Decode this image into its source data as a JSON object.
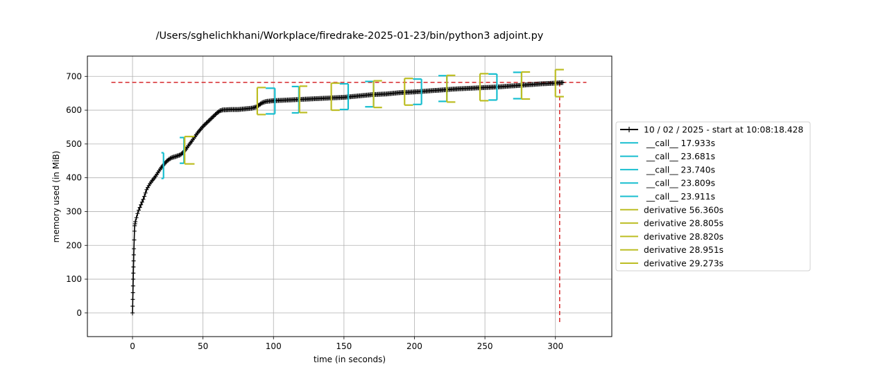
{
  "chart_data": {
    "type": "line",
    "title": "/Users/sghelichkhani/Workplace/firedrake-2025-01-23/bin/python3 adjoint.py",
    "xlabel": "time (in seconds)",
    "ylabel": "memory used (in MiB)",
    "xlim": [
      -32,
      340
    ],
    "ylim": [
      -70,
      760
    ],
    "xticks": [
      0,
      50,
      100,
      150,
      200,
      250,
      300
    ],
    "yticks": [
      0,
      100,
      200,
      300,
      400,
      500,
      600,
      700
    ],
    "grid": true,
    "legend_position": "outside-right",
    "colors": {
      "memory": "#000000",
      "call": "#17becf",
      "derivative": "#bcbd22",
      "peak": "#d62728"
    },
    "memory_series": {
      "name": "10 / 02 / 2025 - start at 10:08:18.428",
      "x": [
        0,
        0.5,
        1,
        1.5,
        2,
        3,
        4,
        5,
        6,
        8,
        10,
        12,
        14,
        16,
        18,
        20,
        22,
        24,
        26,
        28,
        30,
        32,
        34,
        36,
        38,
        40,
        42,
        44,
        46,
        48,
        50,
        52,
        54,
        56,
        58,
        60,
        62,
        64,
        66,
        70,
        75,
        80,
        85,
        88,
        90,
        92,
        95,
        100,
        110,
        120,
        130,
        140,
        150,
        160,
        170,
        180,
        190,
        200,
        210,
        220,
        230,
        240,
        250,
        260,
        270,
        280,
        290,
        300,
        306
      ],
      "y": [
        0,
        100,
        190,
        255,
        270,
        285,
        300,
        310,
        320,
        340,
        365,
        380,
        392,
        402,
        415,
        428,
        438,
        448,
        455,
        460,
        462,
        465,
        468,
        475,
        485,
        497,
        508,
        520,
        532,
        542,
        552,
        560,
        568,
        576,
        584,
        592,
        598,
        601,
        601,
        602,
        602,
        604,
        606,
        610,
        616,
        622,
        626,
        628,
        630,
        632,
        634,
        636,
        638,
        642,
        646,
        648,
        652,
        654,
        657,
        660,
        663,
        665,
        667,
        669,
        672,
        675,
        678,
        680,
        682
      ]
    },
    "peak": {
      "value": 682,
      "time": 303
    },
    "function_brackets": [
      {
        "name": "__call__ 17.933s",
        "kind": "call",
        "start": 20.5,
        "end": 22.0,
        "mem_low": 398,
        "mem_high": 474
      },
      {
        "name": "__call__ 23.681s",
        "kind": "call",
        "start": 33.5,
        "end": 36.5,
        "mem_low": 443,
        "mem_high": 519
      },
      {
        "name": "derivative 56.360s",
        "kind": "derivative",
        "start": 37.0,
        "end": 44.0,
        "mem_low": 441,
        "mem_high": 522
      },
      {
        "name": "__call__ 23.740s",
        "kind": "call",
        "start": 94.5,
        "end": 101.0,
        "mem_low": 589,
        "mem_high": 665
      },
      {
        "name": "derivative 28.805s",
        "kind": "derivative",
        "start": 88.5,
        "end": 94.5,
        "mem_low": 587,
        "mem_high": 667
      },
      {
        "name": "__call__ 23.809s",
        "kind": "call",
        "start": 113.0,
        "end": 118.0,
        "mem_low": 592,
        "mem_high": 670
      },
      {
        "name": "derivative 28.820s",
        "kind": "derivative",
        "start": 118.5,
        "end": 124.0,
        "mem_low": 593,
        "mem_high": 671
      },
      {
        "name": "__call__ 23.911s",
        "kind": "call",
        "start": 147.0,
        "end": 153.0,
        "mem_low": 602,
        "mem_high": 678
      },
      {
        "name": "derivative 28.951s",
        "kind": "derivative",
        "start": 141.0,
        "end": 147.0,
        "mem_low": 600,
        "mem_high": 680
      },
      {
        "name": "__call__",
        "kind": "call",
        "start": 165.0,
        "end": 171.0,
        "mem_low": 610,
        "mem_high": 685
      },
      {
        "name": "derivative",
        "kind": "derivative",
        "start": 171.0,
        "end": 177.0,
        "mem_low": 608,
        "mem_high": 687
      },
      {
        "name": "__call__",
        "kind": "call",
        "start": 199.0,
        "end": 205.0,
        "mem_low": 617,
        "mem_high": 692
      },
      {
        "name": "derivative",
        "kind": "derivative",
        "start": 193.0,
        "end": 199.0,
        "mem_low": 615,
        "mem_high": 694
      },
      {
        "name": "__call__",
        "kind": "call",
        "start": 217.0,
        "end": 223.0,
        "mem_low": 626,
        "mem_high": 702
      },
      {
        "name": "derivative",
        "kind": "derivative",
        "start": 223.0,
        "end": 229.0,
        "mem_low": 624,
        "mem_high": 703
      },
      {
        "name": "__call__",
        "kind": "call",
        "start": 252.5,
        "end": 258.5,
        "mem_low": 630,
        "mem_high": 707
      },
      {
        "name": "derivative",
        "kind": "derivative",
        "start": 246.5,
        "end": 252.5,
        "mem_low": 628,
        "mem_high": 708
      },
      {
        "name": "__call__",
        "kind": "call",
        "start": 270.0,
        "end": 276.0,
        "mem_low": 634,
        "mem_high": 712
      },
      {
        "name": "derivative",
        "kind": "derivative",
        "start": 276.0,
        "end": 282.0,
        "mem_low": 633,
        "mem_high": 713
      },
      {
        "name": "derivative 29.273s",
        "kind": "derivative",
        "start": 300.0,
        "end": 306.0,
        "mem_low": 640,
        "mem_high": 720
      }
    ],
    "legend": [
      {
        "label": "10 / 02 / 2025 - start at 10:08:18.428",
        "kind": "memory"
      },
      {
        "label": " __call__ 17.933s",
        "kind": "call"
      },
      {
        "label": " __call__ 23.681s",
        "kind": "call"
      },
      {
        "label": " __call__ 23.740s",
        "kind": "call"
      },
      {
        "label": " __call__ 23.809s",
        "kind": "call"
      },
      {
        "label": " __call__ 23.911s",
        "kind": "call"
      },
      {
        "label": "derivative 56.360s",
        "kind": "derivative"
      },
      {
        "label": "derivative 28.805s",
        "kind": "derivative"
      },
      {
        "label": "derivative 28.820s",
        "kind": "derivative"
      },
      {
        "label": "derivative 28.951s",
        "kind": "derivative"
      },
      {
        "label": "derivative 29.273s",
        "kind": "derivative"
      }
    ]
  }
}
